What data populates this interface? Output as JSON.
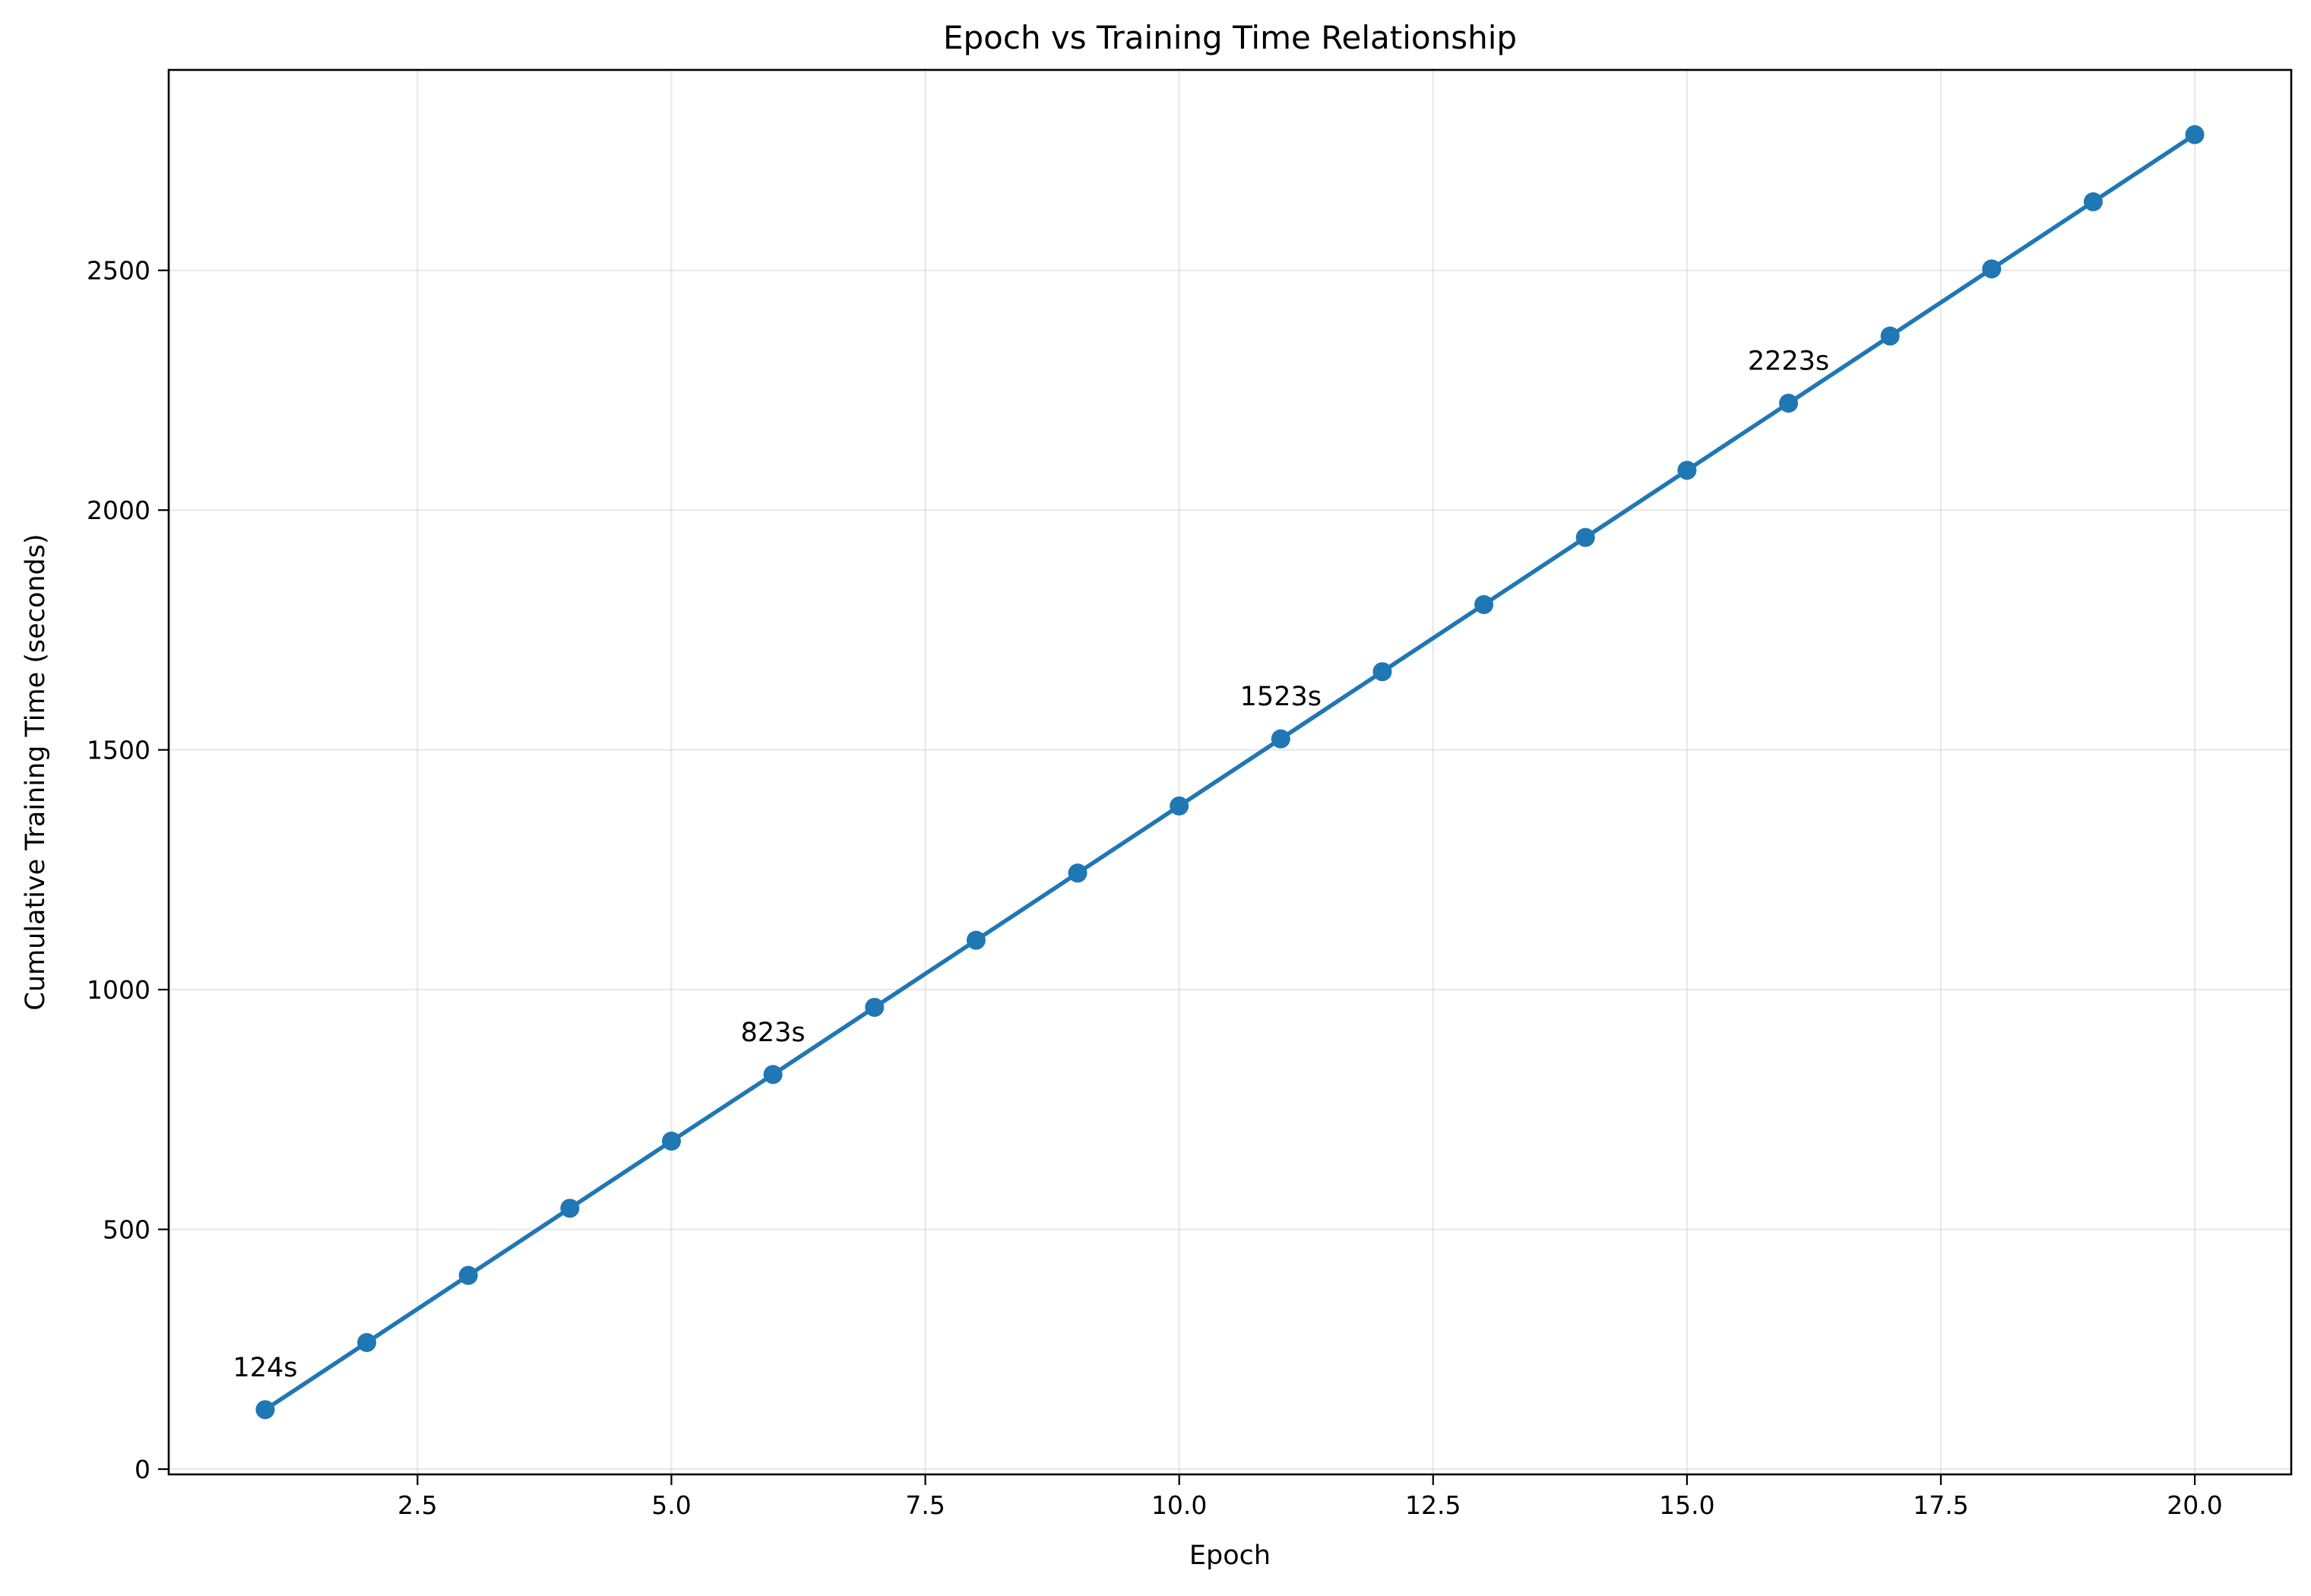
{
  "chart_data": {
    "type": "line",
    "title": "Epoch vs Training Time Relationship",
    "xlabel": "Epoch",
    "ylabel": "Cumulative Training Time (seconds)",
    "xlim": [
      0.05,
      20.95
    ],
    "ylim": [
      -11,
      2918
    ],
    "x_ticks": [
      2.5,
      5.0,
      7.5,
      10.0,
      12.5,
      15.0,
      17.5,
      20.0
    ],
    "x_tick_labels": [
      "2.5",
      "5.0",
      "7.5",
      "10.0",
      "12.5",
      "15.0",
      "17.5",
      "20.0"
    ],
    "y_ticks": [
      0,
      500,
      1000,
      1500,
      2000,
      2500
    ],
    "y_tick_labels": [
      "0",
      "500",
      "1000",
      "1500",
      "2000",
      "2500"
    ],
    "grid": true,
    "legend": "none",
    "series_color": "#1f77b4",
    "x": [
      1,
      2,
      3,
      4,
      5,
      6,
      7,
      8,
      9,
      10,
      11,
      12,
      13,
      14,
      15,
      16,
      17,
      18,
      19,
      20
    ],
    "series": [
      {
        "values": [
          124,
          264,
          404,
          544,
          684,
          823,
          963,
          1103,
          1243,
          1383,
          1523,
          1663,
          1803,
          1943,
          2083,
          2223,
          2363,
          2503,
          2643,
          2783
        ]
      }
    ],
    "annotations": [
      {
        "x": 1,
        "y": 124,
        "text": "124s"
      },
      {
        "x": 6,
        "y": 823,
        "text": "823s"
      },
      {
        "x": 11,
        "y": 1523,
        "text": "1523s"
      },
      {
        "x": 16,
        "y": 2223,
        "text": "2223s"
      }
    ]
  }
}
